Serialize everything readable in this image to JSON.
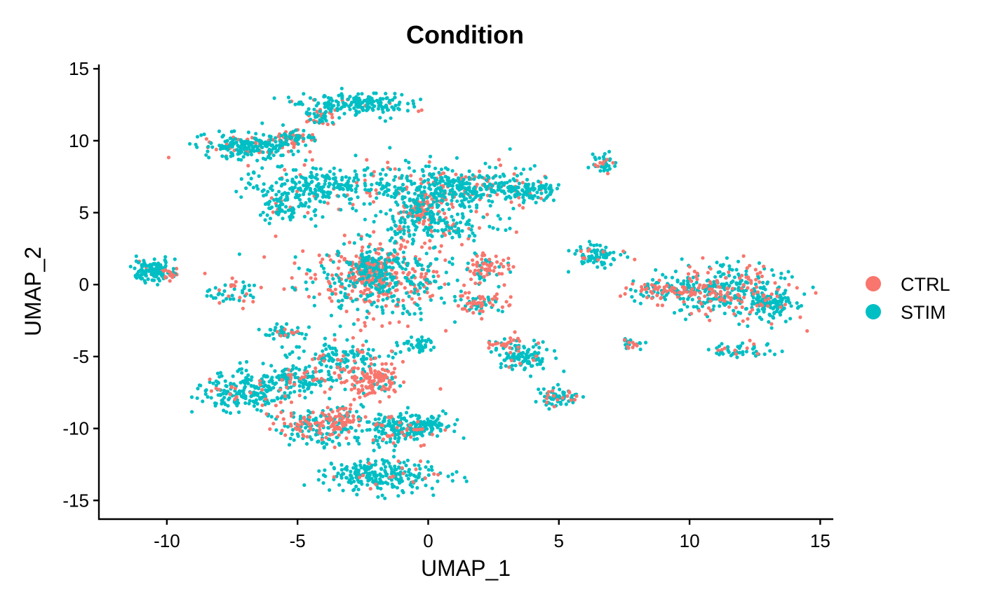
{
  "chart_data": {
    "type": "scatter",
    "title": "Condition",
    "xlabel": "UMAP_1",
    "ylabel": "UMAP_2",
    "xlim": [
      -12.6,
      15.5
    ],
    "ylim": [
      -16.3,
      15.3
    ],
    "x_ticks": [
      -10,
      -5,
      0,
      5,
      10,
      15
    ],
    "y_ticks": [
      -15,
      -10,
      -5,
      0,
      5,
      10,
      15
    ],
    "grid": false,
    "legend_position": "right",
    "series": [
      {
        "name": "CTRL",
        "color": "#F8766D"
      },
      {
        "name": "STIM",
        "color": "#00BFC4"
      }
    ],
    "clusters": [
      {
        "cx": -2.0,
        "cy": 0.5,
        "rx": 3.0,
        "ry": 2.8,
        "n": 520,
        "ctrl": 0.45
      },
      {
        "cx": -2.2,
        "cy": 1.0,
        "rx": 0.9,
        "ry": 1.2,
        "n": 160,
        "ctrl": 0.85
      },
      {
        "cx": 1.0,
        "cy": 6.7,
        "rx": 3.2,
        "ry": 1.6,
        "n": 420,
        "ctrl": 0.2
      },
      {
        "cx": 3.8,
        "cy": 6.5,
        "rx": 1.2,
        "ry": 0.6,
        "n": 90,
        "ctrl": 0.05
      },
      {
        "cx": -0.3,
        "cy": 5.2,
        "rx": 0.7,
        "ry": 1.1,
        "n": 110,
        "ctrl": 0.75
      },
      {
        "cx": 0.5,
        "cy": 4.0,
        "rx": 2.2,
        "ry": 1.0,
        "n": 140,
        "ctrl": 0.15
      },
      {
        "cx": -4.2,
        "cy": 6.8,
        "rx": 2.8,
        "ry": 1.5,
        "n": 260,
        "ctrl": 0.1
      },
      {
        "cx": -6.7,
        "cy": 9.6,
        "rx": 1.9,
        "ry": 0.9,
        "n": 220,
        "ctrl": 0.15
      },
      {
        "cx": -5.2,
        "cy": 10.2,
        "rx": 0.8,
        "ry": 0.6,
        "n": 60,
        "ctrl": 0.6
      },
      {
        "cx": -2.8,
        "cy": 12.6,
        "rx": 2.1,
        "ry": 0.8,
        "n": 200,
        "ctrl": 0.1
      },
      {
        "cx": -4.1,
        "cy": 11.6,
        "rx": 0.6,
        "ry": 0.5,
        "n": 40,
        "ctrl": 0.5
      },
      {
        "cx": -5.4,
        "cy": 5.2,
        "rx": 1.0,
        "ry": 0.8,
        "n": 60,
        "ctrl": 0.1
      },
      {
        "cx": -10.6,
        "cy": 1.0,
        "rx": 0.8,
        "ry": 0.8,
        "n": 110,
        "ctrl": 0.1
      },
      {
        "cx": -9.8,
        "cy": 0.8,
        "rx": 0.5,
        "ry": 0.4,
        "n": 25,
        "ctrl": 0.6
      },
      {
        "cx": -7.6,
        "cy": -0.5,
        "rx": 0.8,
        "ry": 0.8,
        "n": 45,
        "ctrl": 0.25
      },
      {
        "cx": -5.5,
        "cy": -3.3,
        "rx": 0.8,
        "ry": 0.5,
        "n": 50,
        "ctrl": 0.2
      },
      {
        "cx": -3.3,
        "cy": -5.0,
        "rx": 1.8,
        "ry": 0.9,
        "n": 120,
        "ctrl": 0.15
      },
      {
        "cx": -2.1,
        "cy": -6.7,
        "rx": 1.2,
        "ry": 1.2,
        "n": 150,
        "ctrl": 0.8
      },
      {
        "cx": -6.7,
        "cy": -7.3,
        "rx": 2.0,
        "ry": 1.5,
        "n": 260,
        "ctrl": 0.1
      },
      {
        "cx": -4.6,
        "cy": -6.5,
        "rx": 1.2,
        "ry": 0.9,
        "n": 90,
        "ctrl": 0.2
      },
      {
        "cx": -4.3,
        "cy": -10.0,
        "rx": 1.5,
        "ry": 1.2,
        "n": 180,
        "ctrl": 0.35
      },
      {
        "cx": -3.3,
        "cy": -9.2,
        "rx": 0.5,
        "ry": 0.8,
        "n": 50,
        "ctrl": 0.8
      },
      {
        "cx": -1.5,
        "cy": -10.0,
        "rx": 1.3,
        "ry": 1.2,
        "n": 150,
        "ctrl": 0.15
      },
      {
        "cx": -0.2,
        "cy": -9.8,
        "rx": 1.1,
        "ry": 0.8,
        "n": 120,
        "ctrl": 0.05
      },
      {
        "cx": -1.8,
        "cy": -13.3,
        "rx": 2.2,
        "ry": 1.1,
        "n": 240,
        "ctrl": 0.07
      },
      {
        "cx": -0.5,
        "cy": -4.2,
        "rx": 0.7,
        "ry": 0.7,
        "n": 45,
        "ctrl": 0.0
      },
      {
        "cx": 2.3,
        "cy": 1.2,
        "rx": 0.8,
        "ry": 0.9,
        "n": 70,
        "ctrl": 0.8
      },
      {
        "cx": 2.0,
        "cy": -1.3,
        "rx": 1.0,
        "ry": 0.7,
        "n": 70,
        "ctrl": 0.55
      },
      {
        "cx": 3.6,
        "cy": -5.0,
        "rx": 1.0,
        "ry": 0.9,
        "n": 110,
        "ctrl": 0.08
      },
      {
        "cx": 5.0,
        "cy": -7.8,
        "rx": 0.9,
        "ry": 0.7,
        "n": 70,
        "ctrl": 0.2
      },
      {
        "cx": 2.9,
        "cy": -4.1,
        "rx": 0.8,
        "ry": 0.4,
        "n": 30,
        "ctrl": 0.75
      },
      {
        "cx": 6.7,
        "cy": 8.4,
        "rx": 0.4,
        "ry": 0.6,
        "n": 40,
        "ctrl": 0.3
      },
      {
        "cx": 7.8,
        "cy": -4.1,
        "rx": 0.5,
        "ry": 0.4,
        "n": 25,
        "ctrl": 0.2
      },
      {
        "cx": 6.5,
        "cy": 2.0,
        "rx": 1.0,
        "ry": 0.8,
        "n": 80,
        "ctrl": 0.05
      },
      {
        "cx": 9.2,
        "cy": -0.4,
        "rx": 1.6,
        "ry": 0.7,
        "n": 110,
        "ctrl": 0.45
      },
      {
        "cx": 11.3,
        "cy": -0.5,
        "rx": 2.5,
        "ry": 1.8,
        "n": 360,
        "ctrl": 0.3
      },
      {
        "cx": 13.2,
        "cy": -1.5,
        "rx": 1.0,
        "ry": 1.0,
        "n": 100,
        "ctrl": 0.05
      },
      {
        "cx": 12.0,
        "cy": -4.5,
        "rx": 1.1,
        "ry": 0.5,
        "n": 50,
        "ctrl": 0.2
      }
    ]
  }
}
